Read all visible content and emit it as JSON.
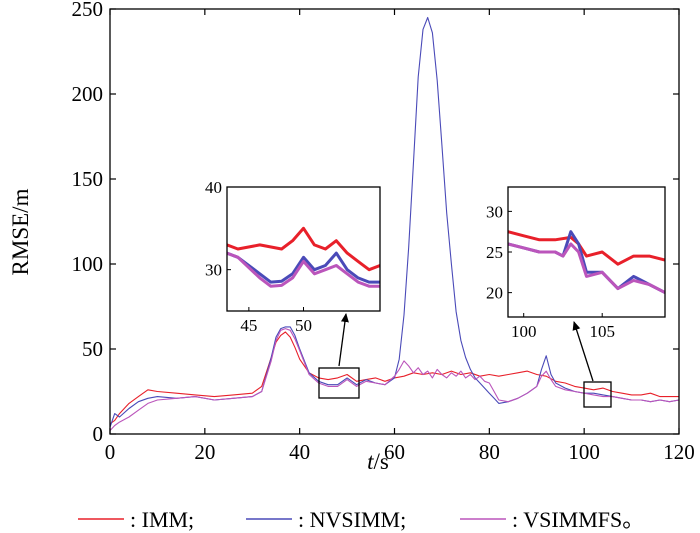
{
  "chart_data": {
    "type": "line",
    "xlabel_var": "t",
    "xlabel_unit": "/s",
    "ylabel": "RMSE/m",
    "xlim": [
      0,
      120
    ],
    "ylim": [
      0,
      250
    ],
    "xticks": [
      "0",
      "20",
      "40",
      "60",
      "80",
      "100",
      "120"
    ],
    "yticks": [
      "0",
      "50",
      "100",
      "150",
      "200",
      "250"
    ],
    "grid": false,
    "legend_position": "bottom",
    "legend_entries": [
      ": IMM;",
      ": NVSIMM;",
      ": VSIMMFS。"
    ],
    "colors": {
      "IMM": "#e8202a",
      "NVSIMM": "#4a4ab8",
      "VSIMMFS": "#bb55bb"
    },
    "series": [
      {
        "name": "IMM",
        "x": [
          0,
          1,
          2,
          4,
          6,
          8,
          10,
          14,
          18,
          22,
          26,
          30,
          32,
          34,
          35,
          36,
          37,
          38,
          39,
          40,
          42,
          44,
          46,
          48,
          50,
          52,
          54,
          56,
          58,
          60,
          62,
          64,
          66,
          68,
          70,
          72,
          74,
          76,
          78,
          80,
          82,
          84,
          86,
          88,
          90,
          92,
          94,
          96,
          98,
          100,
          102,
          104,
          106,
          108,
          110,
          112,
          114,
          116,
          118,
          120
        ],
        "y": [
          6,
          8,
          12,
          18,
          22,
          26,
          25,
          24,
          23,
          22,
          23,
          24,
          28,
          45,
          54,
          58,
          60,
          57,
          51,
          44,
          36,
          33,
          32,
          33,
          35,
          31,
          32,
          33,
          31,
          33,
          34,
          36,
          35,
          36,
          35,
          37,
          35,
          36,
          34,
          35,
          34,
          35,
          36,
          37,
          35,
          34,
          31,
          30,
          28,
          27,
          26,
          27,
          25,
          24,
          23,
          23,
          24,
          22,
          22,
          22
        ]
      },
      {
        "name": "NVSIMM",
        "x": [
          0,
          1,
          2,
          4,
          6,
          8,
          10,
          14,
          18,
          22,
          26,
          30,
          32,
          34,
          35,
          36,
          37,
          38,
          39,
          40,
          42,
          44,
          46,
          48,
          50,
          52,
          54,
          56,
          58,
          60,
          61,
          62,
          63,
          64,
          65,
          66,
          67,
          68,
          69,
          70,
          71,
          72,
          73,
          74,
          75,
          76,
          77,
          78,
          79,
          80,
          81,
          82,
          84,
          86,
          88,
          90,
          91,
          92,
          93,
          94,
          96,
          98,
          100,
          102,
          104,
          106,
          108,
          110,
          112,
          114,
          116,
          118,
          120
        ],
        "y": [
          4,
          12,
          10,
          15,
          19,
          21,
          22,
          21,
          22,
          20,
          21,
          22,
          25,
          45,
          57,
          62,
          63,
          63,
          58,
          50,
          36,
          31,
          29,
          29,
          33,
          29,
          32,
          30,
          29,
          33,
          44,
          70,
          110,
          160,
          210,
          238,
          245,
          236,
          208,
          170,
          130,
          100,
          72,
          55,
          45,
          38,
          33,
          30,
          27,
          24,
          21,
          18,
          19,
          21,
          24,
          28,
          38,
          46,
          35,
          30,
          27,
          25,
          24,
          24,
          23,
          22,
          21,
          20,
          20,
          19,
          20,
          19,
          20
        ]
      },
      {
        "name": "VSIMMFS",
        "x": [
          0,
          1,
          2,
          4,
          6,
          8,
          10,
          14,
          18,
          22,
          26,
          30,
          32,
          34,
          35,
          36,
          37,
          38,
          39,
          40,
          42,
          44,
          46,
          48,
          50,
          52,
          54,
          56,
          58,
          60,
          61,
          62,
          63,
          64,
          65,
          66,
          67,
          68,
          69,
          70,
          71,
          72,
          73,
          74,
          75,
          76,
          77,
          78,
          79,
          80,
          81,
          82,
          84,
          86,
          88,
          90,
          91,
          92,
          93,
          94,
          96,
          98,
          100,
          102,
          104,
          106,
          108,
          110,
          112,
          114,
          116,
          118,
          120
        ],
        "y": [
          2,
          5,
          7,
          10,
          14,
          18,
          20,
          21,
          22,
          20,
          21,
          22,
          25,
          43,
          55,
          61,
          62,
          61,
          56,
          49,
          35,
          30,
          28,
          28,
          32,
          28,
          31,
          30,
          29,
          34,
          38,
          43,
          40,
          36,
          39,
          35,
          37,
          33,
          38,
          35,
          33,
          36,
          34,
          37,
          33,
          35,
          32,
          34,
          31,
          30,
          25,
          20,
          19,
          21,
          24,
          28,
          34,
          37,
          32,
          28,
          26,
          25,
          24,
          23,
          22,
          22,
          21,
          20,
          20,
          19,
          20,
          19,
          20
        ]
      }
    ],
    "insets": [
      {
        "xlim": [
          43,
          57
        ],
        "ylim": [
          25,
          40
        ],
        "xticks": [
          "45",
          "50"
        ],
        "yticks": [
          "30",
          "40"
        ],
        "series": [
          {
            "name": "IMM",
            "x": [
              43,
              44,
              46,
              48,
              49,
              50,
              51,
              52,
              53,
              54,
              55,
              56,
              57
            ],
            "y": [
              33,
              32.5,
              33,
              32.5,
              33.5,
              35,
              33,
              32.5,
              33.5,
              32,
              31,
              30,
              30.5
            ]
          },
          {
            "name": "NVSIMM",
            "x": [
              43,
              44,
              46,
              47,
              48,
              49,
              50,
              51,
              52,
              53,
              54,
              55,
              56,
              57
            ],
            "y": [
              32,
              31.5,
              29.5,
              28.5,
              28.6,
              29.5,
              31.5,
              30,
              30.5,
              32,
              30,
              29,
              28.5,
              28.5
            ]
          },
          {
            "name": "VSIMMFS",
            "x": [
              43,
              44,
              46,
              47,
              48,
              49,
              50,
              51,
              52,
              53,
              54,
              55,
              56,
              57
            ],
            "y": [
              32,
              31.5,
              29,
              28,
              28.1,
              29,
              31,
              29.5,
              30,
              30.5,
              29.5,
              28.5,
              28,
              28
            ]
          }
        ]
      },
      {
        "xlim": [
          99,
          109
        ],
        "ylim": [
          17,
          33
        ],
        "xticks": [
          "100",
          "105"
        ],
        "yticks": [
          "20",
          "25",
          "30"
        ],
        "series": [
          {
            "name": "IMM",
            "x": [
              99,
              100,
              101,
              102,
              103,
              103.5,
              104,
              105,
              106,
              107,
              108,
              109
            ],
            "y": [
              27.5,
              27,
              26.5,
              26.5,
              26.8,
              26,
              24.5,
              25,
              23.5,
              24.5,
              24.5,
              24
            ]
          },
          {
            "name": "NVSIMM",
            "x": [
              99,
              100,
              101,
              102,
              102.5,
              103,
              103.5,
              104,
              105,
              106,
              107,
              108,
              109
            ],
            "y": [
              26,
              25.5,
              25,
              25,
              24.5,
              27.5,
              26,
              22.5,
              22.5,
              20.5,
              22,
              21,
              20
            ]
          },
          {
            "name": "VSIMMFS",
            "x": [
              99,
              100,
              101,
              102,
              102.5,
              103,
              103.5,
              104,
              105,
              106,
              107,
              108,
              109
            ],
            "y": [
              26,
              25.5,
              25,
              25,
              24.5,
              26,
              25,
              22,
              22.5,
              20.5,
              21.5,
              21,
              20
            ]
          }
        ]
      }
    ]
  }
}
